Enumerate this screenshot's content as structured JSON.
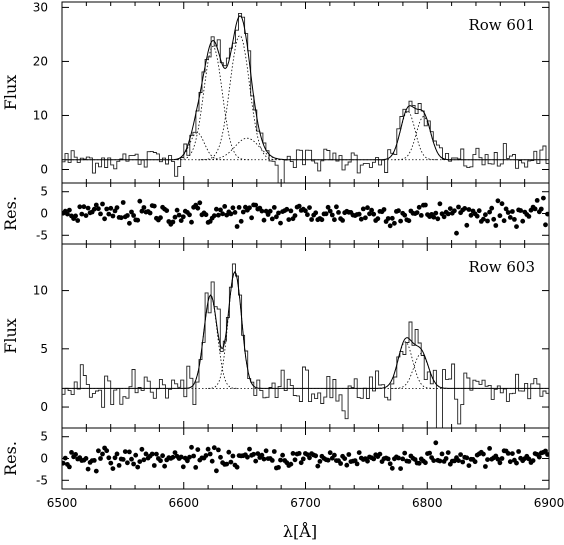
{
  "chart_data": {
    "type": "line",
    "xlabel": "λ[Å]",
    "xlim": [
      6500,
      6900
    ],
    "xticks": [
      6500,
      6600,
      6700,
      6800,
      6900
    ],
    "panels": [
      {
        "kind": "spectrum",
        "label": "Row 601",
        "ylabel": "Flux",
        "ylim": [
          -2.5,
          31
        ],
        "yticks": [
          0,
          10,
          20,
          30
        ],
        "continuum": 1.8,
        "components": [
          {
            "center": 6611,
            "amp": 5.0,
            "sigma": 6
          },
          {
            "center": 6624,
            "amp": 21.0,
            "sigma": 7.5
          },
          {
            "center": 6646,
            "amp": 23.0,
            "sigma": 8
          },
          {
            "center": 6652,
            "amp": 4.0,
            "sigma": 10
          },
          {
            "center": 6784,
            "amp": 9.0,
            "sigma": 6
          },
          {
            "center": 6797,
            "amp": 8.0,
            "sigma": 6
          }
        ],
        "noise": 1.2,
        "dips": [
          {
            "x": 6678,
            "y": -6
          }
        ]
      },
      {
        "kind": "residual",
        "ylabel": "Res.",
        "ylim": [
          -7,
          7
        ],
        "yticks": [
          -5,
          0,
          5
        ],
        "scatter": 1.3
      },
      {
        "kind": "spectrum",
        "label": "Row 603",
        "ylabel": "Flux",
        "ylim": [
          -1.8,
          14
        ],
        "yticks": [
          0,
          5,
          10
        ],
        "continuum": 1.6,
        "components": [
          {
            "center": 6622,
            "amp": 8.0,
            "sigma": 5.5
          },
          {
            "center": 6642,
            "amp": 10.0,
            "sigma": 5.5
          },
          {
            "center": 6782,
            "amp": 4.0,
            "sigma": 6
          },
          {
            "center": 6795,
            "amp": 3.0,
            "sigma": 6
          }
        ],
        "noise": 0.9,
        "dips": [
          {
            "x": 6808,
            "y": -4
          }
        ]
      },
      {
        "kind": "residual",
        "ylabel": "Res.",
        "ylim": [
          -7,
          7
        ],
        "yticks": [
          -5,
          0,
          5
        ],
        "scatter": 1.1
      }
    ]
  }
}
